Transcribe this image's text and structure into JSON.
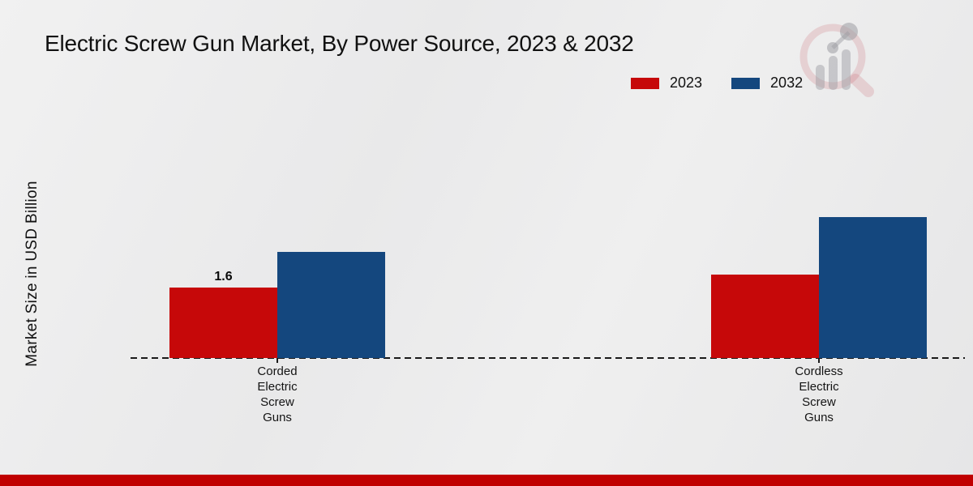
{
  "title": "Electric Screw Gun Market, By Power Source, 2023 & 2032",
  "ylabel": "Market Size in USD Billion",
  "legend": [
    {
      "label": "2023",
      "color": "#c60809"
    },
    {
      "label": "2032",
      "color": "#14477e"
    }
  ],
  "chart_data": {
    "type": "bar",
    "title": "Electric Screw Gun Market, By Power Source, 2023 & 2032",
    "ylabel": "Market Size in USD Billion",
    "categories": [
      "Corded Electric Screw Guns",
      "Cordless Electric Screw Guns"
    ],
    "series": [
      {
        "name": "2023",
        "color": "#c60809",
        "values": [
          1.6,
          1.9
        ]
      },
      {
        "name": "2032",
        "color": "#14477e",
        "values": [
          2.4,
          3.2
        ]
      }
    ],
    "annotations": [
      {
        "series": "2023",
        "category_index": 0,
        "text": "1.6"
      }
    ],
    "ylim": [
      0,
      3.6
    ],
    "legend_position": "top-right",
    "baseline_style": "dashed",
    "grid": false
  },
  "colors": {
    "footer_bar": "#c00000",
    "background": "#ebebeb",
    "text": "#111111"
  },
  "watermark_icon": "magnifier-bar-chart-logo"
}
